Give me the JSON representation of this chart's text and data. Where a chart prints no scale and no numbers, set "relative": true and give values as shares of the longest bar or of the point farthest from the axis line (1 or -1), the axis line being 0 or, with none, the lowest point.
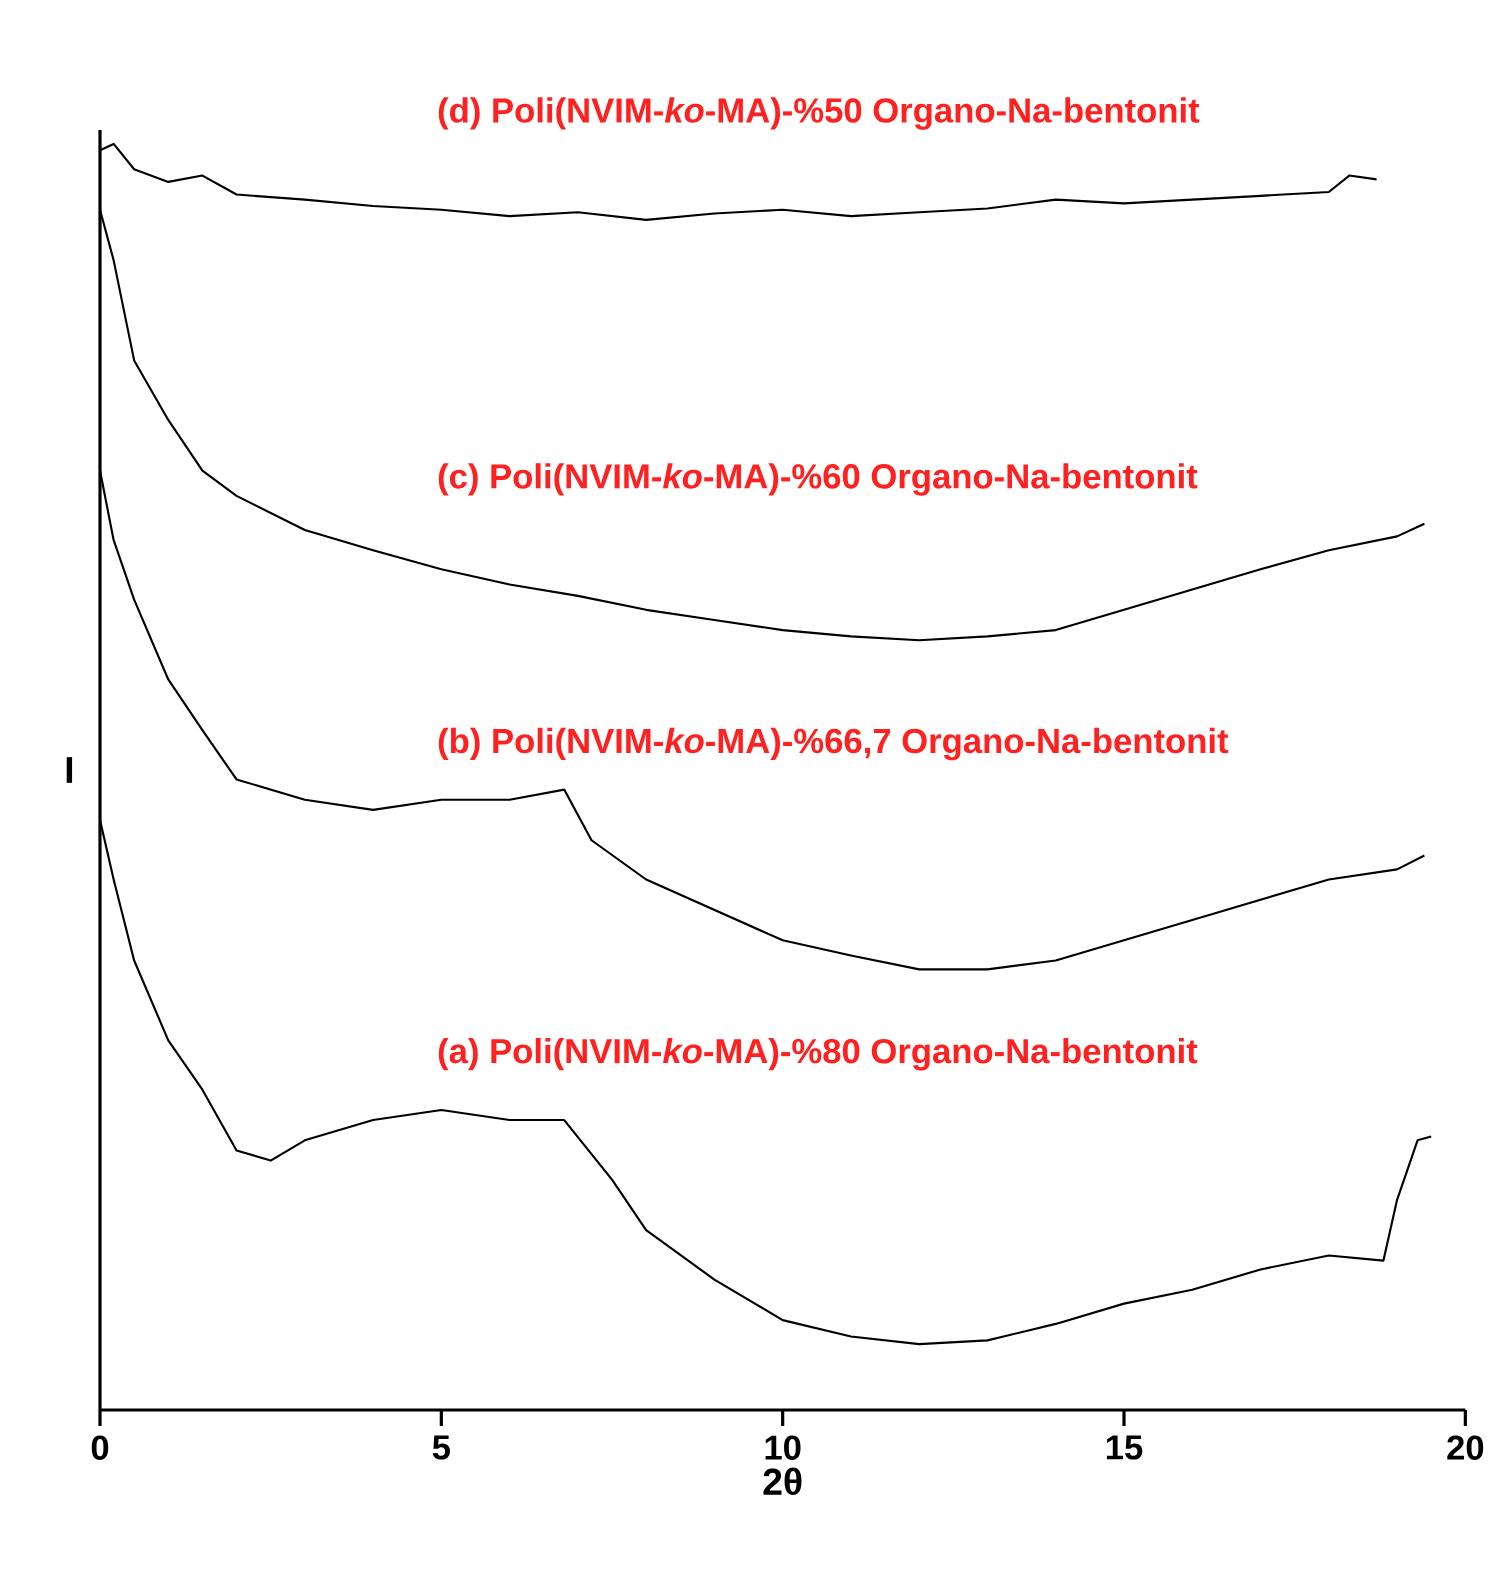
{
  "chart_data": {
    "type": "line",
    "relative": true,
    "xlabel": "2θ",
    "ylabel": "I",
    "xlim": [
      0,
      20
    ],
    "xticks": [
      0,
      5,
      10,
      15,
      20
    ],
    "series": [
      {
        "name": "(a) Poli(NVIM-*ko*-MA)-%80 Organo-Na-bentonit",
        "color": "#000000",
        "x": [
          0,
          0.2,
          0.5,
          1,
          1.5,
          2,
          2.5,
          3,
          4,
          5,
          6,
          6.8,
          7.5,
          8,
          9,
          10,
          11,
          12,
          13,
          14,
          15,
          16,
          17,
          18,
          18.8,
          19,
          19.3,
          19.5
        ],
        "values": [
          0.466,
          0.419,
          0.355,
          0.292,
          0.253,
          0.205,
          0.197,
          0.213,
          0.229,
          0.237,
          0.229,
          0.229,
          0.182,
          0.142,
          0.103,
          0.071,
          0.058,
          0.052,
          0.055,
          0.068,
          0.084,
          0.095,
          0.111,
          0.122,
          0.118,
          0.166,
          0.213,
          0.216
        ]
      },
      {
        "name": "(b) Poli(NVIM-*ko*-MA)-%66,7 Organo-Na-bentonit",
        "color": "#000000",
        "x": [
          0,
          0.2,
          0.5,
          1,
          1.5,
          2,
          3,
          4,
          5,
          6,
          6.8,
          7.2,
          8,
          9,
          10,
          11,
          12,
          13,
          14,
          15,
          16,
          17,
          18,
          19,
          19.4
        ],
        "values": [
          0.742,
          0.687,
          0.64,
          0.577,
          0.537,
          0.498,
          0.482,
          0.474,
          0.482,
          0.482,
          0.49,
          0.45,
          0.419,
          0.395,
          0.371,
          0.359,
          0.348,
          0.348,
          0.355,
          0.371,
          0.387,
          0.403,
          0.419,
          0.427,
          0.438
        ]
      },
      {
        "name": "(c) Poli(NVIM-*ko*-MA)-%60 Organo-Na-bentonit",
        "color": "#000000",
        "x": [
          0,
          0.2,
          0.5,
          1,
          1.5,
          2,
          3,
          4,
          5,
          6,
          7,
          8,
          9,
          10,
          11,
          12,
          13,
          14,
          15,
          16,
          17,
          18,
          19,
          19.4
        ],
        "values": [
          0.948,
          0.908,
          0.829,
          0.782,
          0.742,
          0.722,
          0.695,
          0.679,
          0.664,
          0.652,
          0.643,
          0.632,
          0.624,
          0.616,
          0.611,
          0.608,
          0.611,
          0.616,
          0.632,
          0.648,
          0.664,
          0.679,
          0.69,
          0.7
        ]
      },
      {
        "name": "(d) Poli(NVIM-*ko*-MA)-%50 Organo-Na-bentonit",
        "color": "#000000",
        "x": [
          0,
          0.2,
          0.5,
          1,
          1.5,
          2,
          3,
          4,
          5,
          6,
          7,
          8,
          9,
          10,
          11,
          12,
          13,
          14,
          15,
          16,
          17,
          18,
          18.3,
          18.7
        ],
        "values": [
          0.995,
          1.0,
          0.98,
          0.97,
          0.975,
          0.96,
          0.956,
          0.951,
          0.948,
          0.943,
          0.946,
          0.94,
          0.945,
          0.948,
          0.943,
          0.946,
          0.949,
          0.956,
          0.953,
          0.956,
          0.959,
          0.962,
          0.975,
          0.972
        ]
      }
    ]
  }
}
